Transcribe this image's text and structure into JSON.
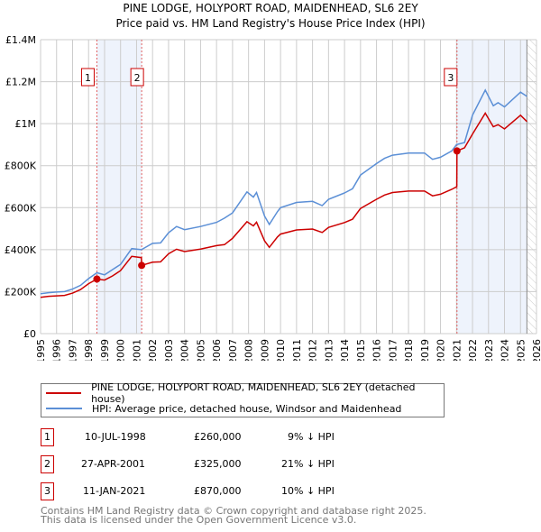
{
  "chart_data": {
    "type": "line",
    "title": "PINE LODGE, HOLYPORT ROAD, MAIDENHEAD, SL6 2EY",
    "subtitle": "Price paid vs. HM Land Registry's House Price Index (HPI)",
    "xlim": [
      1995,
      2026
    ],
    "ylim": [
      0,
      1400000
    ],
    "x_ticks": [
      "1995",
      "1996",
      "1997",
      "1998",
      "1999",
      "2000",
      "2001",
      "2002",
      "2003",
      "2004",
      "2005",
      "2006",
      "2007",
      "2008",
      "2009",
      "2010",
      "2011",
      "2012",
      "2013",
      "2014",
      "2015",
      "2016",
      "2017",
      "2018",
      "2019",
      "2020",
      "2021",
      "2022",
      "2023",
      "2024",
      "2025",
      "2026"
    ],
    "y_ticks": [
      {
        "v": 0,
        "label": "£0"
      },
      {
        "v": 200000,
        "label": "£200K"
      },
      {
        "v": 400000,
        "label": "£400K"
      },
      {
        "v": 600000,
        "label": "£600K"
      },
      {
        "v": 800000,
        "label": "£800K"
      },
      {
        "v": 1000000,
        "label": "£1M"
      },
      {
        "v": 1200000,
        "label": "£1.2M"
      },
      {
        "v": 1400000,
        "label": "£1.4M"
      }
    ],
    "grid": true,
    "data_end": 2025.4,
    "colors": {
      "property": "#cc0000",
      "hpi": "#5b8fd6",
      "shade": "#eef3fc"
    },
    "series": [
      {
        "name": "PINE LODGE, HOLYPORT ROAD, MAIDENHEAD, SL6 2EY (detached house)",
        "key": "property",
        "x": [
          1995,
          1995.5,
          1996,
          1996.5,
          1997,
          1997.5,
          1998,
          1998.52,
          1999,
          1999.5,
          2000,
          2000.7,
          2001.3,
          2001.32,
          2002,
          2002.5,
          2003,
          2003.5,
          2004,
          2005,
          2006,
          2006.5,
          2007,
          2007.9,
          2008.3,
          2008.5,
          2009,
          2009.3,
          2009.8,
          2010,
          2011,
          2012,
          2012.6,
          2013,
          2014,
          2014.5,
          2015,
          2016,
          2016.5,
          2017,
          2018,
          2019,
          2019.5,
          2020,
          2020.7,
          2021.02,
          2021.03,
          2021.5,
          2022,
          2022.8,
          2023.3,
          2023.6,
          2024,
          2025,
          2025.4
        ],
        "y": [
          173000,
          178000,
          180000,
          182000,
          193000,
          210000,
          238000,
          260000,
          255000,
          275000,
          300000,
          368000,
          362000,
          325000,
          340000,
          342000,
          380000,
          402000,
          391000,
          403000,
          419000,
          424000,
          454000,
          533000,
          513000,
          531000,
          442000,
          411000,
          460000,
          474000,
          494000,
          498000,
          482000,
          506000,
          529000,
          545000,
          596000,
          640000,
          660000,
          672000,
          679000,
          679000,
          656000,
          664000,
          687000,
          700000,
          870000,
          885000,
          950000,
          1050000,
          985000,
          995000,
          975000,
          1040000,
          1010000
        ]
      },
      {
        "name": "HPI: Average price, detached house, Windsor and Maidenhead",
        "key": "hpi",
        "x": [
          1995,
          1995.5,
          1996,
          1996.5,
          1997,
          1997.5,
          1998,
          1998.52,
          1999,
          1999.5,
          2000,
          2000.7,
          2001.3,
          2002,
          2002.5,
          2003,
          2003.5,
          2004,
          2005,
          2006,
          2006.5,
          2007,
          2007.9,
          2008.3,
          2008.5,
          2009,
          2009.3,
          2009.8,
          2010,
          2011,
          2012,
          2012.6,
          2013,
          2014,
          2014.5,
          2015,
          2016,
          2016.5,
          2017,
          2018,
          2019,
          2019.5,
          2020,
          2020.7,
          2021,
          2021.5,
          2022,
          2022.8,
          2023.3,
          2023.6,
          2024,
          2025,
          2025.4
        ],
        "y": [
          190000,
          195000,
          198000,
          200000,
          212000,
          230000,
          262000,
          290000,
          280000,
          305000,
          330000,
          405000,
          400000,
          430000,
          432000,
          480000,
          510000,
          495000,
          510000,
          530000,
          550000,
          575000,
          675000,
          650000,
          672000,
          560000,
          520000,
          580000,
          600000,
          625000,
          630000,
          610000,
          640000,
          670000,
          690000,
          755000,
          810000,
          835000,
          850000,
          860000,
          860000,
          830000,
          840000,
          870000,
          900000,
          910000,
          1040000,
          1160000,
          1085000,
          1100000,
          1080000,
          1150000,
          1130000
        ]
      }
    ],
    "sales": [
      {
        "n": "1",
        "x": 1998.52,
        "y": 260000,
        "date": "10-JUL-1998",
        "price": "£260,000",
        "diff": "9% ↓ HPI"
      },
      {
        "n": "2",
        "x": 2001.32,
        "y": 325000,
        "date": "27-APR-2001",
        "price": "£325,000",
        "diff": "21% ↓ HPI"
      },
      {
        "n": "3",
        "x": 2021.03,
        "y": 870000,
        "date": "11-JAN-2021",
        "price": "£870,000",
        "diff": "10% ↓ HPI"
      }
    ]
  },
  "footer": {
    "line1": "Contains HM Land Registry data © Crown copyright and database right 2025.",
    "line2": "This data is licensed under the Open Government Licence v3.0."
  }
}
